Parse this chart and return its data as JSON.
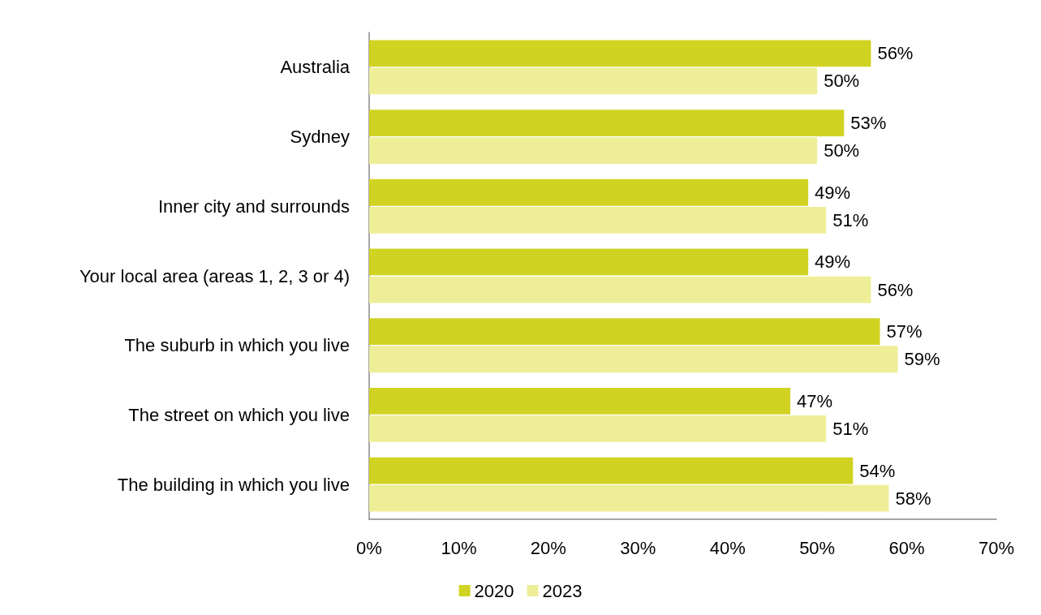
{
  "chart_data": {
    "type": "bar",
    "orientation": "horizontal",
    "categories": [
      "Australia",
      "Sydney",
      "Inner city and surrounds",
      "Your local area (areas 1, 2, 3 or 4)",
      "The suburb in which you live",
      "The street on which you live",
      "The building in which you live"
    ],
    "series": [
      {
        "name": "2020",
        "color": "#d0d321",
        "values": [
          56,
          53,
          49,
          49,
          57,
          47,
          54
        ],
        "value_labels": [
          "56%",
          "53%",
          "49%",
          "49%",
          "57%",
          "47%",
          "54%"
        ]
      },
      {
        "name": "2023",
        "color": "#eeee99",
        "values": [
          50,
          50,
          51,
          56,
          59,
          51,
          58
        ],
        "value_labels": [
          "50%",
          "50%",
          "51%",
          "56%",
          "59%",
          "51%",
          "58%"
        ]
      }
    ],
    "xlim": [
      0,
      70
    ],
    "xticks": [
      {
        "value": 0,
        "label": "0%"
      },
      {
        "value": 10,
        "label": "10%"
      },
      {
        "value": 20,
        "label": "20%"
      },
      {
        "value": 30,
        "label": "30%"
      },
      {
        "value": 40,
        "label": "40%"
      },
      {
        "value": 50,
        "label": "50%"
      },
      {
        "value": 60,
        "label": "60%"
      },
      {
        "value": 70,
        "label": "70%"
      }
    ],
    "grid": false,
    "legend": "bottom"
  }
}
